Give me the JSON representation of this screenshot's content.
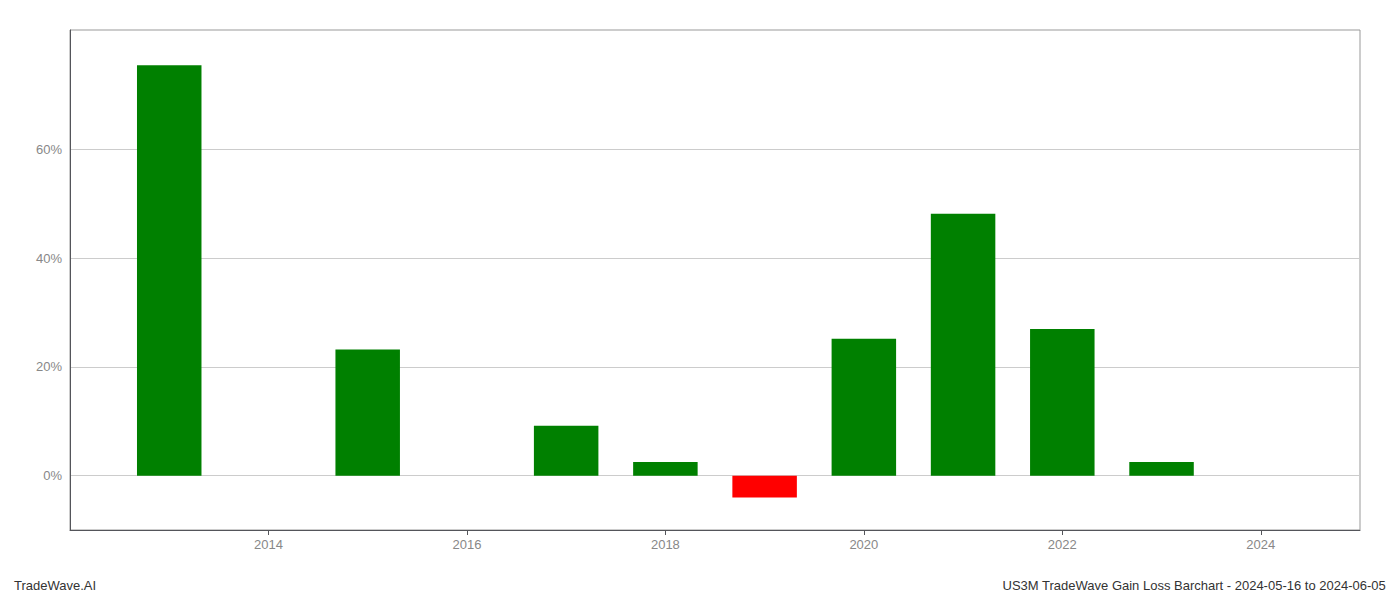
{
  "chart_data": {
    "type": "bar",
    "x": [
      2013,
      2015,
      2017,
      2018,
      2019,
      2020,
      2021,
      2022,
      2023
    ],
    "values": [
      0.755,
      0.232,
      0.092,
      0.025,
      -0.04,
      0.252,
      0.482,
      0.27,
      0.025
    ],
    "colors": [
      "#008000",
      "#008000",
      "#008000",
      "#008000",
      "#ff0000",
      "#008000",
      "#008000",
      "#008000",
      "#008000"
    ],
    "xlim": [
      2012.0,
      2025.0
    ],
    "xticks": [
      2014,
      2016,
      2018,
      2020,
      2022,
      2024
    ],
    "ylim": [
      -0.1,
      0.82
    ],
    "yticks": [
      {
        "value": 0.0,
        "label": "0%"
      },
      {
        "value": 0.2,
        "label": "20%"
      },
      {
        "value": 0.4,
        "label": "40%"
      },
      {
        "value": 0.6,
        "label": "60%"
      }
    ],
    "grid": true,
    "annotations": [
      "TradeWave.AI",
      "US3M TradeWave Gain Loss Barchart - 2024-05-16 to 2024-06-05"
    ]
  }
}
